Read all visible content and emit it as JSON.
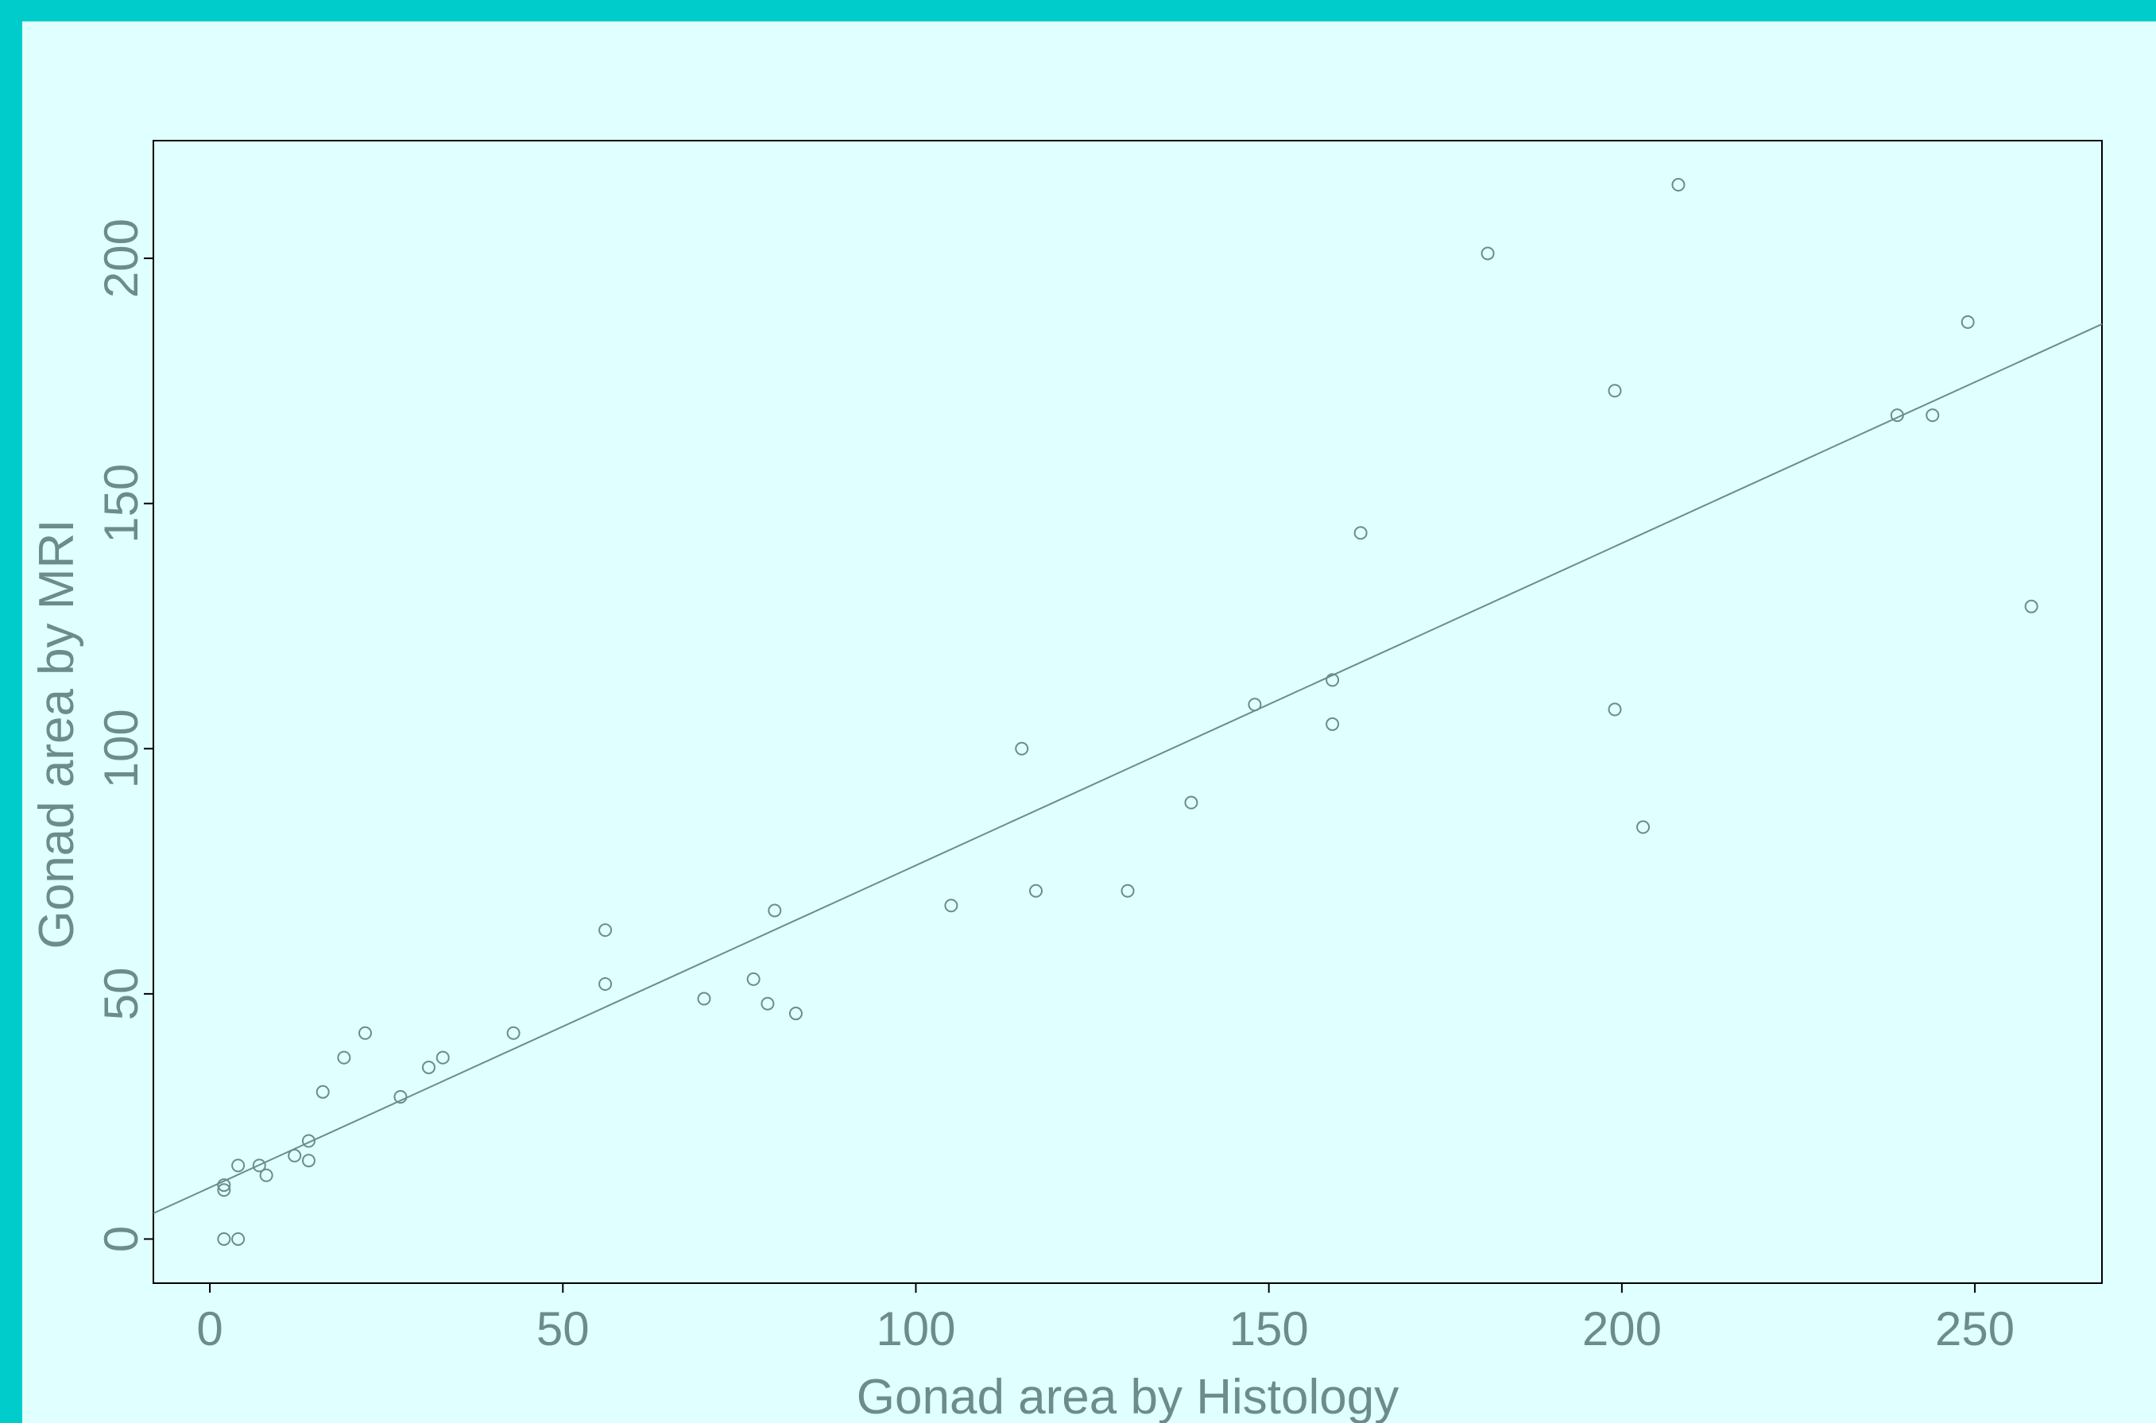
{
  "chart_data": {
    "type": "scatter",
    "title": "",
    "xlabel": "Gonad area by Histology",
    "ylabel": "Gonad area by MRI",
    "xlim": [
      -8,
      268
    ],
    "ylim": [
      -9,
      224
    ],
    "xticks": [
      0,
      50,
      100,
      150,
      200,
      250
    ],
    "yticks": [
      0,
      50,
      100,
      150,
      200
    ],
    "xtick_labels": [
      "0",
      "50",
      "100",
      "150",
      "200",
      "250"
    ],
    "ytick_labels": [
      "0",
      "50",
      "100",
      "150",
      "200"
    ],
    "grid": false,
    "legend": "none",
    "colors": {
      "frame": "#00cccc",
      "background": "#e0ffff",
      "text": "#6c8b8b",
      "marker": "#6c8b8b",
      "fit_line": "#6c8b8b",
      "axes_box": "#000000"
    },
    "points": [
      {
        "x": 2,
        "y": 0
      },
      {
        "x": 4,
        "y": 0
      },
      {
        "x": 2,
        "y": 10
      },
      {
        "x": 2,
        "y": 11
      },
      {
        "x": 4,
        "y": 15
      },
      {
        "x": 7,
        "y": 15
      },
      {
        "x": 8,
        "y": 13
      },
      {
        "x": 12,
        "y": 17
      },
      {
        "x": 14,
        "y": 16
      },
      {
        "x": 14,
        "y": 20
      },
      {
        "x": 16,
        "y": 30
      },
      {
        "x": 19,
        "y": 37
      },
      {
        "x": 22,
        "y": 42
      },
      {
        "x": 27,
        "y": 29
      },
      {
        "x": 31,
        "y": 35
      },
      {
        "x": 33,
        "y": 37
      },
      {
        "x": 43,
        "y": 42
      },
      {
        "x": 56,
        "y": 52
      },
      {
        "x": 56,
        "y": 63
      },
      {
        "x": 70,
        "y": 49
      },
      {
        "x": 77,
        "y": 53
      },
      {
        "x": 79,
        "y": 48
      },
      {
        "x": 80,
        "y": 67
      },
      {
        "x": 83,
        "y": 46
      },
      {
        "x": 105,
        "y": 68
      },
      {
        "x": 115,
        "y": 100
      },
      {
        "x": 117,
        "y": 71
      },
      {
        "x": 130,
        "y": 71
      },
      {
        "x": 139,
        "y": 89
      },
      {
        "x": 148,
        "y": 109
      },
      {
        "x": 159,
        "y": 105
      },
      {
        "x": 159,
        "y": 114
      },
      {
        "x": 163,
        "y": 144
      },
      {
        "x": 181,
        "y": 201
      },
      {
        "x": 199,
        "y": 173
      },
      {
        "x": 199,
        "y": 108
      },
      {
        "x": 203,
        "y": 84
      },
      {
        "x": 208,
        "y": 215
      },
      {
        "x": 239,
        "y": 168
      },
      {
        "x": 244,
        "y": 168
      },
      {
        "x": 249,
        "y": 187
      },
      {
        "x": 258,
        "y": 129
      }
    ],
    "fit_line": {
      "intercept": 10.5,
      "slope": 0.657
    }
  }
}
